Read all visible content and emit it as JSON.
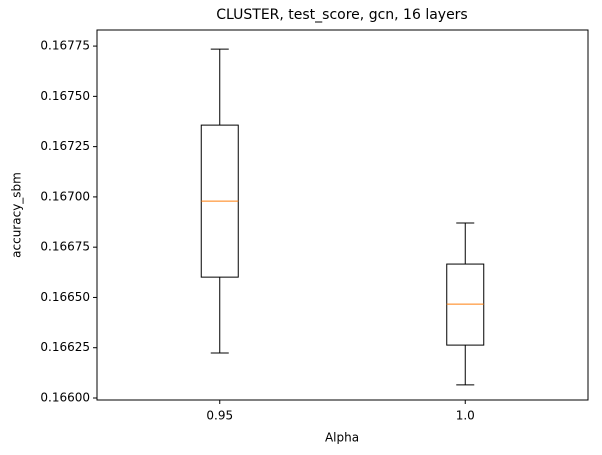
{
  "chart_data": {
    "type": "box",
    "title": "CLUSTER, test_score, gcn, 16 layers",
    "x_label": "Alpha",
    "y_label": "accuracy_sbm",
    "categories": [
      "0.95",
      "1.0"
    ],
    "boxes": [
      {
        "whislo": 0.166224,
        "q1": 0.166601,
        "med": 0.166979,
        "q3": 0.167357,
        "whishi": 0.167735
      },
      {
        "whislo": 0.166065,
        "q1": 0.166263,
        "med": 0.166467,
        "q3": 0.166666,
        "whishi": 0.16687
      }
    ],
    "box_color": "#000000",
    "median_color": "#ff7f0e",
    "ylim": [
      0.16599,
      0.16783
    ],
    "yticks": [
      {
        "value": 0.166,
        "label": "0.16600"
      },
      {
        "value": 0.16625,
        "label": "0.16625"
      },
      {
        "value": 0.1665,
        "label": "0.16650"
      },
      {
        "value": 0.16675,
        "label": "0.16675"
      },
      {
        "value": 0.167,
        "label": "0.16700"
      },
      {
        "value": 0.16725,
        "label": "0.16725"
      },
      {
        "value": 0.1675,
        "label": "0.16750"
      },
      {
        "value": 0.16775,
        "label": "0.16775"
      }
    ],
    "grid": false
  }
}
